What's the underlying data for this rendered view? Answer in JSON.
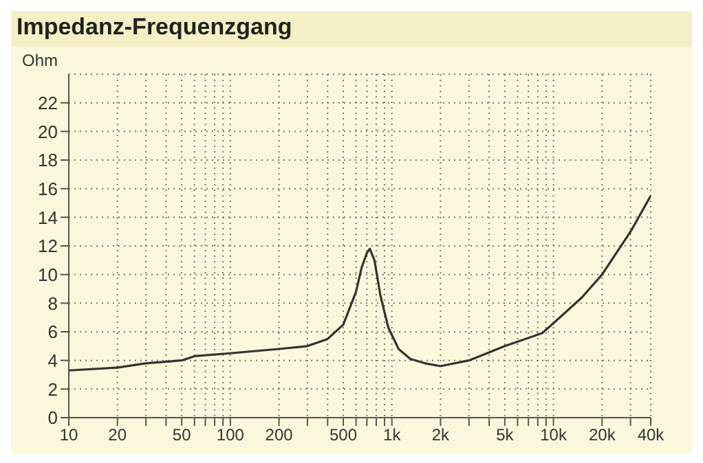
{
  "chart_data": {
    "type": "line",
    "title": "Impedanz-Frequenzgang",
    "ylabel": "Ohm",
    "x": [
      10,
      20,
      30,
      50,
      60,
      100,
      200,
      300,
      400,
      500,
      600,
      650,
      700,
      730,
      780,
      850,
      950,
      1100,
      1300,
      1600,
      2000,
      3000,
      5000,
      8500,
      10000,
      15000,
      20000,
      30000,
      40000
    ],
    "series": [
      {
        "color": "#333333",
        "values": [
          3.3,
          3.5,
          3.8,
          4.0,
          4.3,
          4.5,
          4.8,
          5.0,
          5.5,
          6.5,
          8.8,
          10.5,
          11.5,
          11.8,
          11.0,
          8.5,
          6.3,
          4.8,
          4.1,
          3.8,
          3.6,
          4.0,
          5.0,
          5.9,
          6.6,
          8.4,
          10.0,
          13.0,
          15.5
        ]
      }
    ],
    "log": "x",
    "xlim": [
      10,
      40000
    ],
    "ylim": [
      0,
      24
    ],
    "xticks": [
      10,
      20,
      {
        "value": 30,
        "label": null
      },
      {
        "value": 40,
        "label": null
      },
      50,
      {
        "value": 60,
        "label": null
      },
      {
        "value": 70,
        "label": null
      },
      {
        "value": 80,
        "label": null
      },
      {
        "value": 90,
        "label": null
      },
      100,
      200,
      {
        "value": 300,
        "label": null
      },
      {
        "value": 400,
        "label": null
      },
      500,
      {
        "value": 600,
        "label": null
      },
      {
        "value": 700,
        "label": null
      },
      {
        "value": 800,
        "label": null
      },
      {
        "value": 900,
        "label": null
      },
      {
        "value": 1000,
        "label": "1k"
      },
      {
        "value": 2000,
        "label": "2k"
      },
      {
        "value": 3000,
        "label": null
      },
      {
        "value": 4000,
        "label": null
      },
      {
        "value": 5000,
        "label": "5k"
      },
      {
        "value": 6000,
        "label": null
      },
      {
        "value": 7000,
        "label": null
      },
      {
        "value": 8000,
        "label": null
      },
      {
        "value": 9000,
        "label": null
      },
      {
        "value": 10000,
        "label": "10k"
      },
      {
        "value": 20000,
        "label": "20k"
      },
      {
        "value": 30000,
        "label": null
      },
      {
        "value": 40000,
        "label": "40k"
      }
    ],
    "yticks": [
      0,
      2,
      4,
      6,
      8,
      10,
      12,
      14,
      16,
      18,
      20,
      22
    ],
    "grid": true,
    "marker": "none",
    "line_style": "solid",
    "legend": false
  }
}
